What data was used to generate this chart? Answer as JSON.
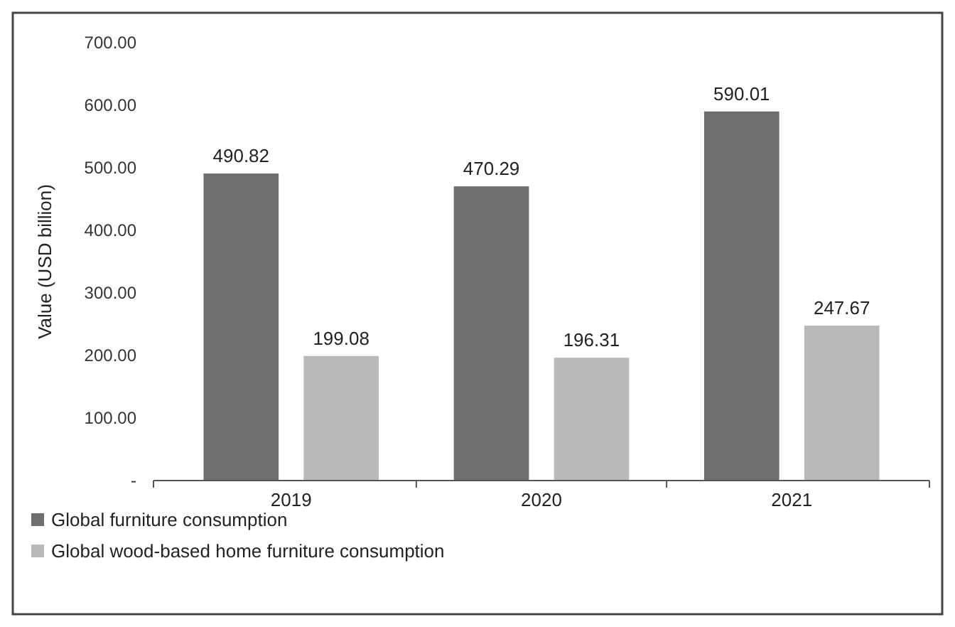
{
  "chart_data": {
    "type": "bar",
    "ylabel": "Value (USD billion)",
    "categories": [
      "2019",
      "2020",
      "2021"
    ],
    "series": [
      {
        "name": "Global furniture consumption",
        "color": "#6e6e6e",
        "values": [
          490.82,
          470.29,
          590.01
        ]
      },
      {
        "name": "Global wood-based home furniture consumption",
        "color": "#b9b9b9",
        "values": [
          199.08,
          196.31,
          247.67
        ]
      }
    ],
    "ylim": [
      0,
      700
    ],
    "yticks": [
      {
        "value": 0,
        "label": "-"
      },
      {
        "value": 100,
        "label": "100.00"
      },
      {
        "value": 200,
        "label": "200.00"
      },
      {
        "value": 300,
        "label": "300.00"
      },
      {
        "value": 400,
        "label": "400.00"
      },
      {
        "value": 500,
        "label": "500.00"
      },
      {
        "value": 600,
        "label": "600.00"
      },
      {
        "value": 700,
        "label": "700.00"
      }
    ],
    "data_labels": true,
    "legend": "bottom left",
    "grid": false
  }
}
